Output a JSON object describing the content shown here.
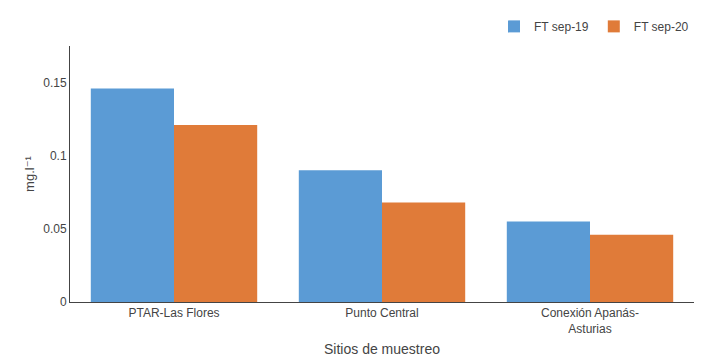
{
  "chart_data": {
    "type": "bar",
    "categories": [
      "PTAR-Las Flores",
      "Punto Central",
      "Conexión Apanás-\nAsturias"
    ],
    "series": [
      {
        "name": "FT sep-19",
        "color": "#5B9BD5",
        "values": [
          0.146,
          0.09,
          0.055
        ]
      },
      {
        "name": "FT sep-20",
        "color": "#E07B39",
        "values": [
          0.121,
          0.068,
          0.046
        ]
      }
    ],
    "xlabel": "Sitios de muestreo",
    "ylabel": "mg.l⁻¹",
    "ylim": [
      0,
      0.175
    ],
    "yticks": [
      0,
      0.05,
      0.1,
      0.15
    ],
    "grid": false,
    "legend": "upper right"
  }
}
